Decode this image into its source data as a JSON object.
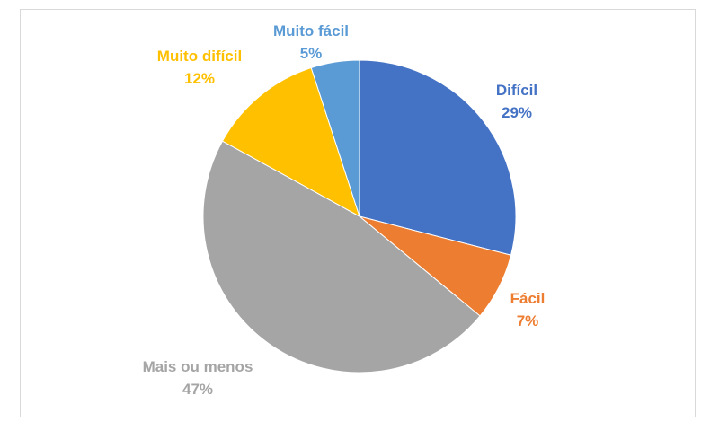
{
  "chart_data": {
    "type": "pie",
    "title": "",
    "slices": [
      {
        "name": "Difícil",
        "value": 29,
        "value_label": "29%",
        "color": "#4472c4"
      },
      {
        "name": "Fácil",
        "value": 7,
        "value_label": "7%",
        "color": "#ed7d31"
      },
      {
        "name": "Mais ou menos",
        "value": 47,
        "value_label": "47%",
        "color": "#a5a5a5"
      },
      {
        "name": "Muito difícil",
        "value": 12,
        "value_label": "12%",
        "color": "#ffc000"
      },
      {
        "name": "Muito fácil",
        "value": 5,
        "value_label": "5%",
        "color": "#5b9bd5"
      }
    ],
    "legend": "none",
    "data_labels": "category-and-percent, outside"
  }
}
